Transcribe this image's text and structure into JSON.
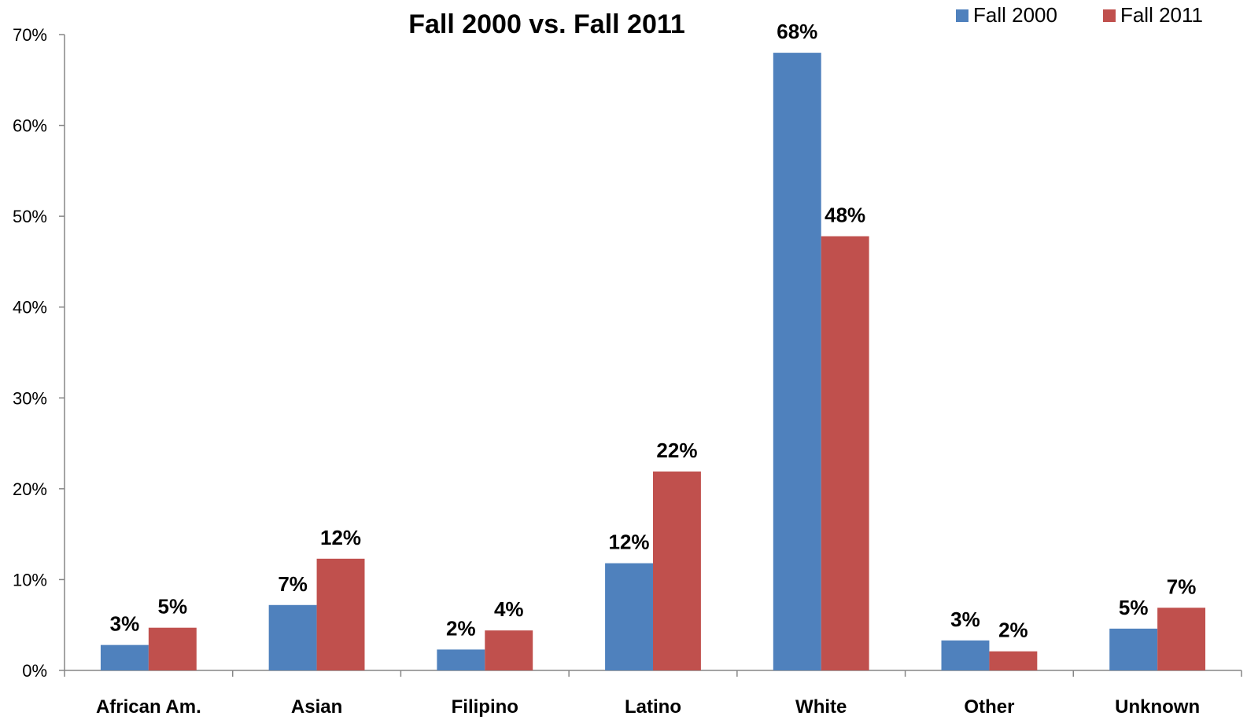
{
  "chart_data": {
    "type": "bar",
    "title": "Fall 2000 vs. Fall 2011",
    "xlabel": "",
    "ylabel": "",
    "categories": [
      "African Am.",
      "Asian",
      "Filipino",
      "Latino",
      "White",
      "Other",
      "Unknown"
    ],
    "series": [
      {
        "name": "Fall 2000",
        "color": "#4F81BD",
        "values": [
          2.8,
          7.2,
          2.3,
          11.8,
          68.0,
          3.3,
          4.6
        ],
        "labels": [
          "3%",
          "7%",
          "2%",
          "12%",
          "68%",
          "3%",
          "5%"
        ]
      },
      {
        "name": "Fall 2011",
        "color": "#C0504D",
        "values": [
          4.7,
          12.3,
          4.4,
          21.9,
          47.8,
          2.1,
          6.9
        ],
        "labels": [
          "5%",
          "12%",
          "4%",
          "22%",
          "48%",
          "2%",
          "7%"
        ]
      }
    ],
    "ylim": [
      0,
      70
    ],
    "yticks": [
      0,
      10,
      20,
      30,
      40,
      50,
      60,
      70
    ],
    "ytick_labels": [
      "0%",
      "10%",
      "20%",
      "30%",
      "40%",
      "50%",
      "60%",
      "70%"
    ],
    "legend": "top-right",
    "grid": false
  }
}
